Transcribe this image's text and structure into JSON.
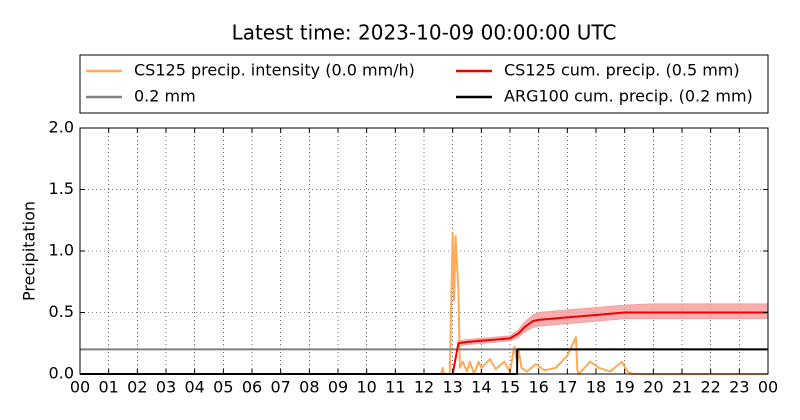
{
  "chart_data": {
    "type": "line",
    "title": "Latest time: 2023-10-09 00:00:00 UTC",
    "y_label": "Precipitation",
    "xlim": [
      0,
      24
    ],
    "xticks": [
      {
        "value": 0,
        "label": "00"
      },
      {
        "value": 1,
        "label": "01"
      },
      {
        "value": 2,
        "label": "02"
      },
      {
        "value": 3,
        "label": "03"
      },
      {
        "value": 4,
        "label": "04"
      },
      {
        "value": 5,
        "label": "05"
      },
      {
        "value": 6,
        "label": "06"
      },
      {
        "value": 7,
        "label": "07"
      },
      {
        "value": 8,
        "label": "08"
      },
      {
        "value": 9,
        "label": "09"
      },
      10,
      11,
      12,
      13,
      14,
      15,
      16,
      17,
      18,
      19,
      20,
      21,
      22,
      23,
      {
        "value": 24,
        "label": "00"
      }
    ],
    "ylim": [
      0,
      2
    ],
    "yticks": [
      {
        "value": 0,
        "label": "0.0"
      },
      {
        "value": 0.5,
        "label": "0.5"
      },
      {
        "value": 1,
        "label": "1.0"
      },
      {
        "value": 1.5,
        "label": "1.5"
      },
      {
        "value": 2,
        "label": "2.0"
      }
    ],
    "grid": true,
    "series": [
      {
        "name": "CS125 precip. intensity (0.0 mm/h)",
        "color": "#ffaa55",
        "x": [
          0,
          12.6,
          12.65,
          12.7,
          12.9,
          13.0,
          13.05,
          13.1,
          13.15,
          13.2,
          13.25,
          13.35,
          13.5,
          13.6,
          13.75,
          13.9,
          14.0,
          14.3,
          14.5,
          14.8,
          15.0,
          15.15,
          15.25,
          15.3,
          15.4,
          15.6,
          15.9,
          16.2,
          16.6,
          17.0,
          17.3,
          17.35,
          17.4,
          17.8,
          18.1,
          18.5,
          18.9,
          19.1,
          19.3,
          20,
          24
        ],
        "values": [
          0,
          0,
          0.05,
          0,
          0,
          1.15,
          0.6,
          1.12,
          0.9,
          0.7,
          0.05,
          0.1,
          0.02,
          0.1,
          0.0,
          0.1,
          0.05,
          0.12,
          0.04,
          0.1,
          0.02,
          0.22,
          0.1,
          0.2,
          0.05,
          0.02,
          0.08,
          0.03,
          0.05,
          0.15,
          0.3,
          0.03,
          0.0,
          0.1,
          0.05,
          0.02,
          0.1,
          0.02,
          0,
          0,
          0
        ]
      },
      {
        "name": "0.2 mm",
        "color": "#808080",
        "x": [
          0,
          24
        ],
        "values": [
          0.2,
          0.2
        ]
      },
      {
        "name": "CS125 cum. precip. (0.5 mm)",
        "color": "#ee0000",
        "band_color": "#f4a0a0",
        "x": [
          0,
          13.0,
          13.2,
          13.5,
          14,
          14.5,
          15,
          15.3,
          15.5,
          15.8,
          16,
          16.5,
          17,
          17.5,
          18,
          18.5,
          19,
          20,
          21,
          22,
          23,
          24
        ],
        "values": [
          0,
          0,
          0.25,
          0.26,
          0.27,
          0.28,
          0.29,
          0.33,
          0.38,
          0.43,
          0.44,
          0.45,
          0.46,
          0.47,
          0.48,
          0.49,
          0.5,
          0.5,
          0.5,
          0.5,
          0.5,
          0.5
        ],
        "band_upper": [
          0,
          0,
          0.27,
          0.28,
          0.29,
          0.3,
          0.31,
          0.36,
          0.42,
          0.48,
          0.5,
          0.51,
          0.52,
          0.53,
          0.54,
          0.55,
          0.56,
          0.57,
          0.57,
          0.57,
          0.57,
          0.57
        ],
        "band_lower": [
          0,
          0,
          0.23,
          0.24,
          0.25,
          0.26,
          0.27,
          0.3,
          0.34,
          0.38,
          0.39,
          0.4,
          0.41,
          0.42,
          0.43,
          0.44,
          0.45,
          0.45,
          0.45,
          0.45,
          0.45,
          0.45
        ]
      },
      {
        "name": "ARG100 cum. precip. (0.2 mm)",
        "color": "#000000",
        "x": [
          0,
          15.25,
          15.25,
          24
        ],
        "values": [
          0,
          0,
          0.2,
          0.2
        ]
      }
    ]
  }
}
